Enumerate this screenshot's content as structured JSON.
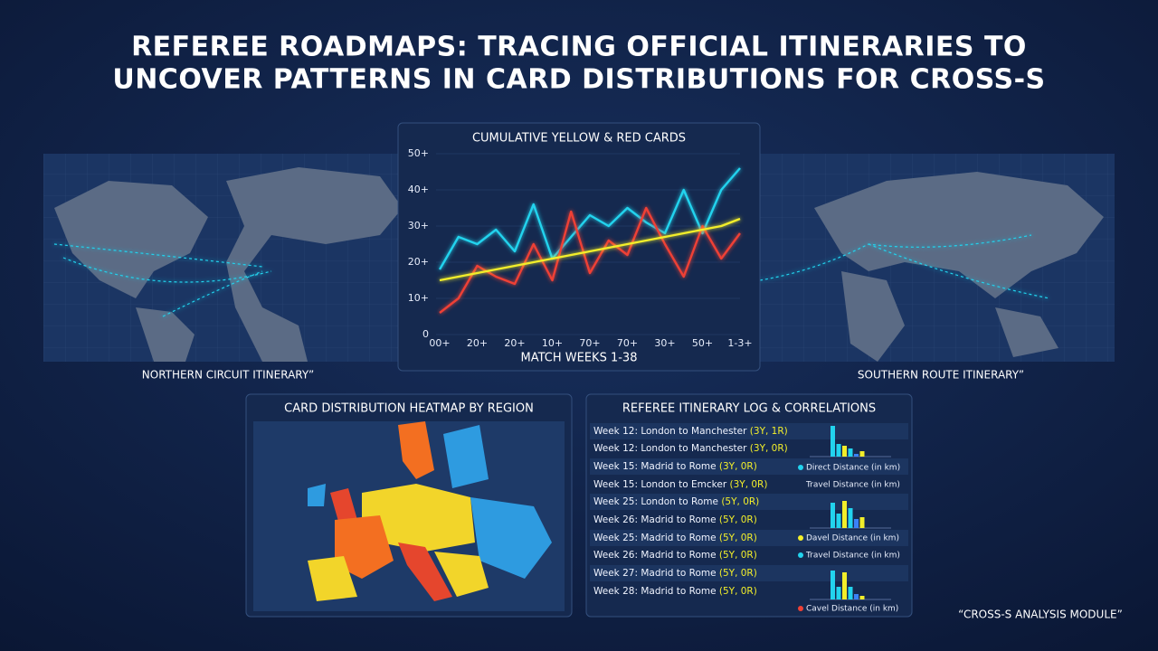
{
  "header": {
    "title_lines": [
      "REFEREE ROADMAPS: TRACING OFFICIAL ITINERARIES TO",
      "UNCOVER PATTERNS IN CARD DISTRIBUTIONS FOR CROSS-S"
    ]
  },
  "maps": {
    "left_label": "NORTHERN CIRCUIT ITINERARY”",
    "right_label": "SOUTHERN ROUTE ITINERARY”"
  },
  "chart_data": {
    "type": "line",
    "title": "CUMULATIVE YELLOW & RED CARDS",
    "x_label": "MATCH WEEKS 1-38",
    "categories": [
      "00+",
      null,
      "20+",
      null,
      "20+",
      null,
      "10+",
      null,
      "70+",
      null,
      "70+",
      null,
      "30+",
      null,
      "50+",
      null,
      "1-3+"
    ],
    "series": [
      {
        "color": "#22d3ee",
        "values": [
          18,
          27,
          25,
          29,
          23,
          36,
          21,
          27,
          33,
          30,
          35,
          31,
          28,
          40,
          28,
          40,
          46
        ]
      },
      {
        "color": "#ef4136",
        "values": [
          6,
          10,
          19,
          16,
          14,
          25,
          15,
          34,
          17,
          26,
          22,
          35,
          25,
          16,
          30,
          21,
          28
        ]
      },
      {
        "color": "#f2ee2a",
        "values": [
          15,
          16,
          17,
          18,
          19,
          20,
          21,
          22,
          23,
          24,
          25,
          26,
          27,
          28,
          29,
          30,
          32
        ]
      }
    ],
    "ylim": [
      0,
      50
    ],
    "yticks": [
      0,
      {
        "value": 10,
        "label": "10+"
      },
      {
        "value": 20,
        "label": "20+"
      },
      {
        "value": 30,
        "label": "30+"
      },
      {
        "value": 40,
        "label": "40+"
      },
      {
        "value": 50,
        "label": "50+"
      }
    ]
  },
  "heatmap": {
    "title": "CARD DISTRIBUTION HEATMAP BY REGION"
  },
  "log": {
    "title": "REFEREE ITINERARY LOG & CORRELATIONS",
    "rows": [
      {
        "route": "Week 12: London to Manchester ",
        "cards": "(3Y, 1R)"
      },
      {
        "route": "Week 12: London to Manchester ",
        "cards": "(3Y, 0R)"
      },
      {
        "route": "Week 15: Madrid to Rome ",
        "cards": "(3Y, 0R)"
      },
      {
        "route": "Week 15: London to Emcker ",
        "cards": "(3Y, 0R)"
      },
      {
        "route": "Week 25: London to Rome ",
        "cards": "(5Y, 0R)"
      },
      {
        "route": "Week 26: Madrid to Rome ",
        "cards": "(5Y, 0R)"
      },
      {
        "route": "Week 25: Madrid to Rome ",
        "cards": "(5Y, 0R)"
      },
      {
        "route": "Week 26: Madrid to Rome ",
        "cards": "(5Y, 0R)"
      },
      {
        "route": "Week 27: Madrid to Rome ",
        "cards": "(5Y, 0R)"
      },
      {
        "route": "Week 28: Madrid to Rome ",
        "cards": "(5Y, 0R)"
      }
    ],
    "legend": [
      {
        "label": "Direct Distance (in km)",
        "color": "#22d3ee"
      },
      {
        "label": "Travel Distance (in km)",
        "color": null
      },
      {
        "label": "Davel Distance (in km)",
        "color": "#f2ee2a"
      },
      {
        "label": "Travel Distance (in km)",
        "color": "#22d3ee"
      },
      {
        "label": "Cavel Distance (in km)",
        "color": "#ef4136"
      }
    ],
    "mini_charts": [
      {
        "values": [
          34,
          14,
          12,
          9,
          3,
          6
        ],
        "colors": [
          "#22d3ee",
          "#22d3ee",
          "#f2ee2a",
          "#22d3ee",
          "#3b82f6",
          "#f2ee2a"
        ]
      },
      {
        "values": [
          28,
          16,
          30,
          22,
          10,
          12
        ],
        "colors": [
          "#22d3ee",
          "#22d3ee",
          "#f2ee2a",
          "#22d3ee",
          "#3b82f6",
          "#f2ee2a"
        ]
      },
      {
        "values": [
          32,
          14,
          30,
          14,
          6,
          4
        ],
        "colors": [
          "#22d3ee",
          "#22d3ee",
          "#f2ee2a",
          "#22d3ee",
          "#3b82f6",
          "#f2ee2a"
        ]
      }
    ]
  },
  "footer": {
    "text": "“CROSS-S ANALYSIS MODULE”"
  }
}
